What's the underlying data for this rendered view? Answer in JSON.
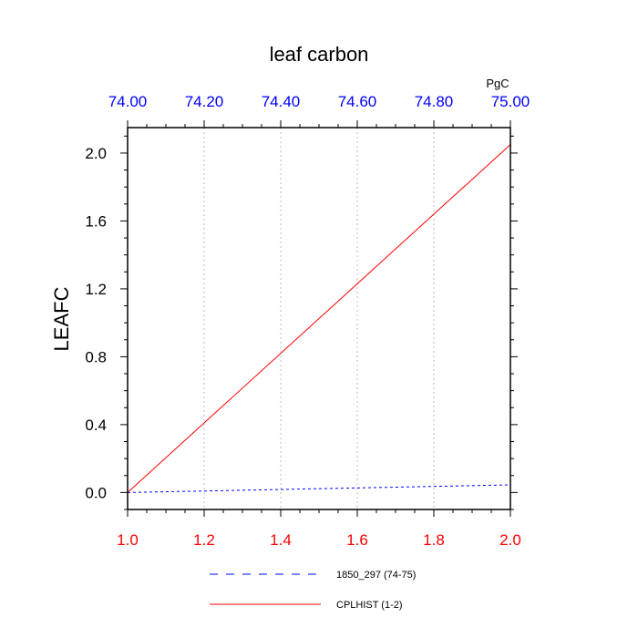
{
  "chart_data": {
    "type": "line",
    "title": "leaf carbon",
    "ylabel": "LEAFC",
    "top_axis_unit": "PgC",
    "x_bottom": {
      "range": [
        1.0,
        2.0
      ],
      "ticks": [
        "1.0",
        "1.2",
        "1.4",
        "1.6",
        "1.8",
        "2.0"
      ],
      "color": "#ff0000"
    },
    "x_top": {
      "range": [
        74.0,
        75.0
      ],
      "ticks": [
        "74.00",
        "74.20",
        "74.40",
        "74.60",
        "74.80",
        "75.00"
      ],
      "color": "#0000ff"
    },
    "y": {
      "range": [
        -0.1,
        2.15
      ],
      "ticks": [
        "0.0",
        "0.4",
        "0.8",
        "1.2",
        "1.6",
        "2.0"
      ]
    },
    "grid": "vertical-dotted",
    "legend_position": "bottom",
    "series": [
      {
        "name": "1850_297 (74-75)",
        "axis": "top",
        "color": "#0000ff",
        "dash": "dashed",
        "x": [
          74.0,
          75.0
        ],
        "y": [
          0.0,
          0.045
        ]
      },
      {
        "name": "CPLHIST (1-2)",
        "axis": "bottom",
        "color": "#ff0000",
        "dash": "solid",
        "x": [
          1.0,
          2.0
        ],
        "y": [
          0.0,
          2.05
        ]
      }
    ]
  }
}
